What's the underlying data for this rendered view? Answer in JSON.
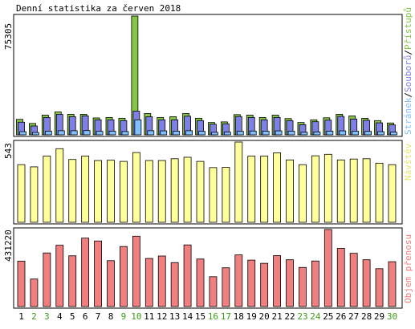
{
  "colors": {
    "background": "#ffffff",
    "frame": "#000000",
    "hits": "#86c44a",
    "files": "#7f7fe6",
    "pages": "#80c0ff",
    "visits": "#ffff9c",
    "kbytes": "#f08080",
    "weekend": "#3a9d16",
    "text": "#000000"
  },
  "chart_data": {
    "type": "bar",
    "title": "Denní statistika za červen 2018",
    "days": [
      "1",
      "2",
      "3",
      "4",
      "5",
      "6",
      "7",
      "8",
      "9",
      "10",
      "11",
      "12",
      "13",
      "14",
      "15",
      "16",
      "17",
      "18",
      "19",
      "20",
      "21",
      "22",
      "23",
      "24",
      "25",
      "26",
      "27",
      "28",
      "29",
      "30"
    ],
    "weekend_days": [
      2,
      3,
      9,
      10,
      16,
      17,
      23,
      24,
      30
    ],
    "panels": [
      {
        "name": "hits-files-pages",
        "ymax_label": "75305",
        "ymax": 75305,
        "legend": {
          "pages": "Stránek",
          "sep1": "/",
          "files": "Souborů",
          "sep2": "/",
          "hits": "Přístupů"
        },
        "series": [
          {
            "key": "hits",
            "values": [
              9800,
              7200,
              12500,
              14500,
              13000,
              13000,
              10700,
              11000,
              10500,
              75305,
              13500,
              11000,
              11500,
              13500,
              10500,
              7800,
              8200,
              12800,
              12500,
              11000,
              12500,
              10300,
              7800,
              9500,
              10800,
              13000,
              12000,
              10500,
              9000,
              7500
            ]
          },
          {
            "key": "files",
            "values": [
              8000,
              5600,
              11000,
              13000,
              11500,
              12000,
              9500,
              9500,
              9000,
              15000,
              11500,
              9500,
              9500,
              11800,
              9000,
              6700,
              7000,
              11600,
              11000,
              9500,
              11000,
              9000,
              6400,
              8300,
              9300,
              11700,
              10000,
              9200,
              7600,
              6300
            ]
          },
          {
            "key": "pages",
            "values": [
              2000,
              1500,
              2300,
              2600,
              2600,
              2700,
              2200,
              2300,
              2100,
              9500,
              2600,
              2500,
              2300,
              2600,
              2200,
              1600,
              1700,
              2200,
              2400,
              2300,
              2500,
              2300,
              1600,
              1800,
              2300,
              2500,
              2300,
              2200,
              2000,
              1700
            ]
          }
        ]
      },
      {
        "name": "visits",
        "ymax_label": "543",
        "ymax": 543,
        "legend": {
          "visits": "Návštěv"
        },
        "series": [
          {
            "key": "visits",
            "values": [
              390,
              375,
              448,
              498,
              425,
              448,
              418,
              420,
              412,
              472,
              418,
              418,
              430,
              440,
              412,
              370,
              372,
              543,
              448,
              448,
              470,
              422,
              390,
              450,
              460,
              422,
              428,
              430,
              400,
              390
            ]
          }
        ]
      },
      {
        "name": "kbytes",
        "ymax_label": "431220",
        "ymax": 431220,
        "legend": {
          "kbytes": "Objem přenosu"
        },
        "series": [
          {
            "key": "kbytes",
            "values": [
              254000,
              154000,
              300000,
              343000,
              284000,
              383000,
              367000,
              257000,
              336000,
              394000,
              269000,
              283000,
              246000,
              345000,
              266000,
              167000,
              217000,
              289000,
              260000,
              242000,
              285000,
              262000,
              219000,
              255000,
              431220,
              326000,
              298000,
              262000,
              212000,
              251000
            ]
          }
        ]
      }
    ]
  }
}
